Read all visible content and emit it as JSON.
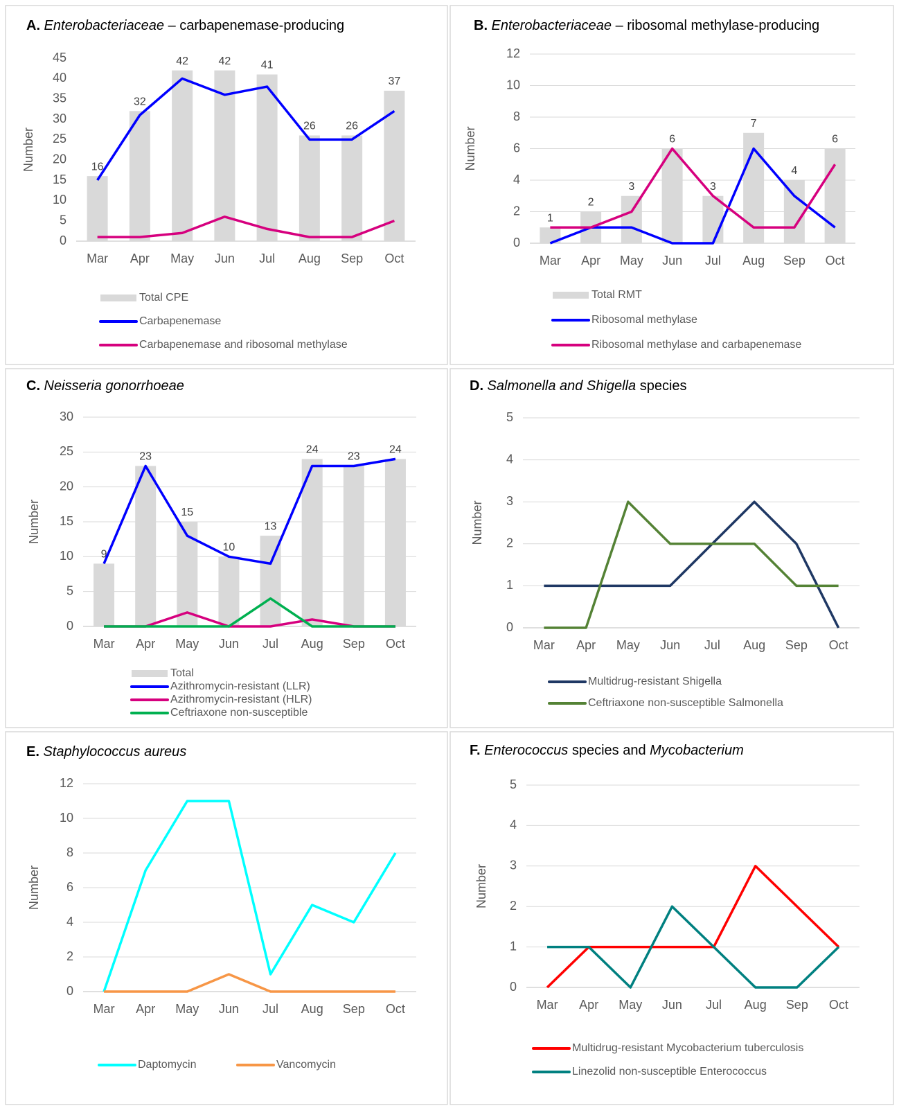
{
  "chart_data": [
    {
      "type": "combo",
      "title": [
        "A.",
        " Enterobacteriaceae",
        " – carbapenemase-producing"
      ],
      "title_style": [
        "bold",
        "italic",
        "normal"
      ],
      "y_label": "Number",
      "categories": [
        "Mar",
        "Apr",
        "May",
        "Jun",
        "Jul",
        "Aug",
        "Sep",
        "Oct"
      ],
      "ylim": [
        0,
        45
      ],
      "yticks": [
        0,
        5,
        10,
        15,
        20,
        25,
        30,
        35,
        40,
        45
      ],
      "grid": false,
      "legend": "bottom",
      "value_labels_on_bars": true,
      "series": [
        {
          "name": "Total CPE",
          "type": "bar",
          "color": "#d9d9d9",
          "values": [
            16,
            32,
            42,
            42,
            41,
            26,
            26,
            37
          ]
        },
        {
          "name": "Carbapenemase",
          "type": "line",
          "color": "#0000ff",
          "values": [
            15,
            31,
            40,
            36,
            38,
            25,
            25,
            32
          ]
        },
        {
          "name": "Carbapenemase and ribosomal methylase",
          "type": "line",
          "color": "#d6007e",
          "values": [
            1,
            1,
            2,
            6,
            3,
            1,
            1,
            5
          ]
        }
      ]
    },
    {
      "type": "combo",
      "title": [
        "B.",
        " Enterobacteriaceae",
        " – ribosomal methylase-producing"
      ],
      "title_style": [
        "bold",
        "italic",
        "normal"
      ],
      "y_label": "Number",
      "categories": [
        "Mar",
        "Apr",
        "May",
        "Jun",
        "Jul",
        "Aug",
        "Sep",
        "Oct"
      ],
      "ylim": [
        0,
        12
      ],
      "yticks": [
        0,
        2,
        4,
        6,
        8,
        10,
        12
      ],
      "grid": true,
      "legend": "bottom",
      "value_labels_on_bars": true,
      "series": [
        {
          "name": "Total RMT",
          "type": "bar",
          "color": "#d9d9d9",
          "values": [
            1,
            2,
            3,
            6,
            3,
            7,
            4,
            6
          ]
        },
        {
          "name": "Ribosomal methylase",
          "type": "line",
          "color": "#0000ff",
          "values": [
            0,
            1,
            1,
            0,
            0,
            6,
            3,
            1
          ]
        },
        {
          "name": "Ribosomal methylase and carbapenemase",
          "type": "line",
          "color": "#d6007e",
          "values": [
            1,
            1,
            2,
            6,
            3,
            1,
            1,
            5
          ]
        }
      ]
    },
    {
      "type": "combo",
      "title": [
        "C.",
        " Neisseria gonorrhoeae"
      ],
      "title_style": [
        "bold",
        "italic"
      ],
      "y_label": "Number",
      "categories": [
        "Mar",
        "Apr",
        "May",
        "Jun",
        "Jul",
        "Aug",
        "Sep",
        "Oct"
      ],
      "ylim": [
        0,
        30
      ],
      "yticks": [
        0,
        5,
        10,
        15,
        20,
        25,
        30
      ],
      "grid": true,
      "legend": "bottom",
      "value_labels_on_bars": true,
      "series": [
        {
          "name": "Total",
          "type": "bar",
          "color": "#d9d9d9",
          "values": [
            9,
            23,
            15,
            10,
            13,
            24,
            23,
            24
          ]
        },
        {
          "name": "Azithromycin-resistant (LLR)",
          "type": "line",
          "color": "#0000ff",
          "values": [
            9,
            23,
            13,
            10,
            9,
            23,
            23,
            24
          ]
        },
        {
          "name": "Azithromycin-resistant (HLR)",
          "type": "line",
          "color": "#d6007e",
          "values": [
            0,
            0,
            2,
            0,
            0,
            1,
            0,
            0
          ]
        },
        {
          "name": "Ceftriaxone non-susceptible",
          "type": "line",
          "color": "#00b050",
          "values": [
            0,
            0,
            0,
            0,
            4,
            0,
            0,
            0
          ]
        }
      ]
    },
    {
      "type": "line",
      "title": [
        "D.",
        " Salmonella and Shigella",
        " species"
      ],
      "title_style": [
        "bold",
        "italic",
        "normal"
      ],
      "y_label": "Number",
      "categories": [
        "Mar",
        "Apr",
        "May",
        "Jun",
        "Jul",
        "Aug",
        "Sep",
        "Oct"
      ],
      "ylim": [
        0,
        5
      ],
      "yticks": [
        0,
        1,
        2,
        3,
        4,
        5
      ],
      "grid": true,
      "legend": "bottom",
      "series": [
        {
          "name": "Multidrug-resistant Shigella",
          "type": "line",
          "color": "#1f3864",
          "values": [
            1,
            1,
            1,
            1,
            2,
            3,
            2,
            0
          ]
        },
        {
          "name": "Ceftriaxone non-susceptible Salmonella",
          "type": "line",
          "color": "#548235",
          "values": [
            0,
            0,
            3,
            2,
            2,
            2,
            1,
            1
          ]
        }
      ]
    },
    {
      "type": "line",
      "title": [
        "E.",
        " Staphylococcus aureus"
      ],
      "title_style": [
        "bold",
        "italic"
      ],
      "y_label": "Number",
      "categories": [
        "Mar",
        "Apr",
        "May",
        "Jun",
        "Jul",
        "Aug",
        "Sep",
        "Oct"
      ],
      "ylim": [
        0,
        12
      ],
      "yticks": [
        0,
        2,
        4,
        6,
        8,
        10,
        12
      ],
      "grid": true,
      "legend": "bottom",
      "series": [
        {
          "name": "Daptomycin",
          "type": "line",
          "color": "#00ffff",
          "values": [
            0,
            7,
            11,
            11,
            1,
            5,
            4,
            8
          ]
        },
        {
          "name": "Vancomycin",
          "type": "line",
          "color": "#f79646",
          "values": [
            0,
            0,
            0,
            1,
            0,
            0,
            0,
            0
          ]
        }
      ]
    },
    {
      "type": "line",
      "title": [
        "F.",
        " Enterococcus",
        " species and ",
        "Mycobacterium"
      ],
      "title_style": [
        "bold",
        "italic",
        "normal",
        "italic"
      ],
      "y_label": "Number",
      "categories": [
        "Mar",
        "Apr",
        "May",
        "Jun",
        "Jul",
        "Aug",
        "Sep",
        "Oct"
      ],
      "ylim": [
        0,
        5
      ],
      "yticks": [
        0,
        1,
        2,
        3,
        4,
        5
      ],
      "grid": true,
      "legend": "bottom",
      "series": [
        {
          "name": "Multidrug-resistant Mycobacterium tuberculosis",
          "type": "line",
          "color": "#ff0000",
          "values": [
            0,
            1,
            1,
            1,
            1,
            3,
            2,
            1
          ]
        },
        {
          "name": "Linezolid non-susceptible Enterococcus",
          "type": "line",
          "color": "#008080",
          "values": [
            1,
            1,
            0,
            2,
            1,
            0,
            0,
            1
          ]
        }
      ]
    }
  ]
}
